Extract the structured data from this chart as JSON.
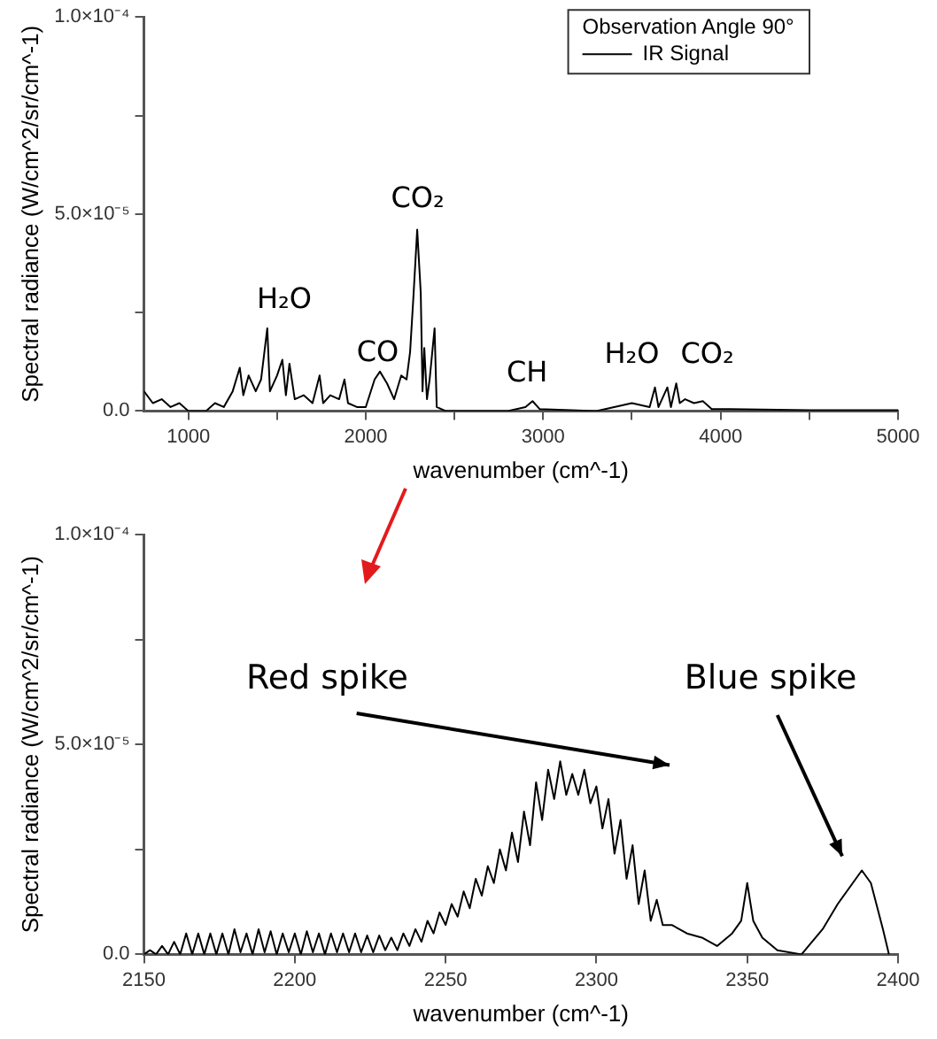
{
  "chart_data": [
    {
      "type": "line",
      "xlabel": "wavenumber (cm^-1)",
      "ylabel": "Spectral radiance (W/cm^2/sr/cm^-1)",
      "legend_title": "Observation Angle 90°",
      "legend": "top right",
      "xlim": [
        750,
        5000
      ],
      "xticks": [
        {
          "value": 1000,
          "label": "1000"
        },
        {
          "value": 1500,
          "label": null
        },
        {
          "value": 2000,
          "label": "2000"
        },
        {
          "value": 2500,
          "label": null
        },
        {
          "value": 3000,
          "label": "3000"
        },
        {
          "value": 3500,
          "label": null
        },
        {
          "value": 4000,
          "label": "4000"
        },
        {
          "value": 4500,
          "label": null
        },
        {
          "value": 5000,
          "label": "5000"
        }
      ],
      "ylim": [
        0,
        0.0001
      ],
      "yticks": [
        {
          "value": 0,
          "label": "0.0"
        },
        {
          "value": 2.5e-05,
          "label": null
        },
        {
          "value": 5e-05,
          "label": "5.0×10⁻⁵"
        },
        {
          "value": 7.5e-05,
          "label": null
        },
        {
          "value": 0.0001,
          "label": "1.0×10⁻⁴"
        }
      ],
      "x": [
        750,
        800,
        850,
        900,
        950,
        1000,
        1100,
        1150,
        1200,
        1250,
        1290,
        1310,
        1340,
        1380,
        1410,
        1445,
        1460,
        1500,
        1530,
        1550,
        1570,
        1600,
        1650,
        1700,
        1740,
        1760,
        1800,
        1850,
        1880,
        1900,
        1950,
        2000,
        2050,
        2080,
        2120,
        2160,
        2200,
        2230,
        2250,
        2270,
        2290,
        2310,
        2320,
        2330,
        2345,
        2360,
        2388,
        2400,
        2450,
        2800,
        2900,
        2940,
        2980,
        3300,
        3400,
        3500,
        3600,
        3630,
        3650,
        3700,
        3720,
        3750,
        3770,
        3800,
        3850,
        3900,
        3950,
        4050,
        4500,
        5000
      ],
      "series": [
        {
          "name": "IR Signal",
          "color": "#000000",
          "values": [
            5e-06,
            2e-06,
            3e-06,
            1e-06,
            2e-06,
            0,
            0,
            2e-06,
            1e-06,
            5e-06,
            1.1e-05,
            4e-06,
            9e-06,
            5e-06,
            8e-06,
            2.1e-05,
            5e-06,
            9e-06,
            1.3e-05,
            4e-06,
            1.2e-05,
            3e-06,
            4e-06,
            2e-06,
            9e-06,
            2e-06,
            4e-06,
            3e-06,
            8e-06,
            2e-06,
            1e-06,
            1e-06,
            8e-06,
            1e-05,
            7e-06,
            3e-06,
            9e-06,
            8e-06,
            1.5e-05,
            3e-05,
            4.6e-05,
            3e-05,
            5e-06,
            1.6e-05,
            3e-06,
            8e-06,
            2.1e-05,
            1e-06,
            0,
            0,
            1e-06,
            2.5e-06,
            5e-07,
            0,
            1e-06,
            2e-06,
            1e-06,
            6e-06,
            1e-06,
            6e-06,
            1e-06,
            7e-06,
            2e-06,
            3e-06,
            2e-06,
            2.5e-06,
            5e-07,
            5e-07,
            2e-07,
            2e-07
          ]
        }
      ],
      "annotations": [
        "H₂O",
        "CO",
        "CO₂",
        "CH",
        "H₂O",
        "CO₂"
      ]
    },
    {
      "type": "line",
      "xlabel": "wavenumber (cm^-1)",
      "ylabel": "Spectral radiance (W/cm^2/sr/cm^-1)",
      "color": "#000000",
      "xlim": [
        2150,
        2400
      ],
      "xticks": [
        2150,
        2200,
        2250,
        2300,
        2350,
        2400
      ],
      "ylim": [
        0,
        0.0001
      ],
      "yticks": [
        {
          "value": 0,
          "label": "0.0"
        },
        {
          "value": 2.5e-05,
          "label": null
        },
        {
          "value": 5e-05,
          "label": "5.0×10⁻⁵"
        },
        {
          "value": 7.5e-05,
          "label": null
        },
        {
          "value": 0.0001,
          "label": "1.0×10⁻⁴"
        }
      ],
      "x": [
        2150,
        2152,
        2154,
        2156,
        2158,
        2160,
        2162,
        2164,
        2166,
        2168,
        2170,
        2172,
        2174,
        2176,
        2178,
        2180,
        2182,
        2184,
        2186,
        2188,
        2190,
        2192,
        2194,
        2196,
        2198,
        2200,
        2202,
        2204,
        2206,
        2208,
        2210,
        2212,
        2214,
        2216,
        2218,
        2220,
        2222,
        2224,
        2226,
        2228,
        2230,
        2232,
        2234,
        2236,
        2238,
        2240,
        2242,
        2244,
        2246,
        2248,
        2250,
        2252,
        2254,
        2256,
        2258,
        2260,
        2262,
        2264,
        2266,
        2268,
        2270,
        2272,
        2274,
        2276,
        2278,
        2280,
        2282,
        2284,
        2286,
        2288,
        2290,
        2292,
        2294,
        2296,
        2298,
        2300,
        2302,
        2304,
        2306,
        2308,
        2310,
        2312,
        2314,
        2316,
        2318,
        2320,
        2322,
        2325,
        2330,
        2335,
        2340,
        2345,
        2348,
        2350,
        2352,
        2355,
        2360,
        2368,
        2375,
        2380,
        2385,
        2388,
        2391,
        2395,
        2397
      ],
      "values": [
        0,
        1e-06,
        0,
        2e-06,
        0,
        3e-06,
        0,
        5e-06,
        0,
        5e-06,
        0,
        5e-06,
        0,
        5e-06,
        0,
        6e-06,
        5e-07,
        5e-06,
        0,
        6e-06,
        5e-07,
        5.5e-06,
        0,
        5e-06,
        5e-07,
        5e-06,
        0,
        5.5e-06,
        5e-07,
        5e-06,
        0,
        5e-06,
        5e-07,
        5e-06,
        5e-07,
        5e-06,
        5e-07,
        4.5e-06,
        5e-07,
        4.5e-06,
        1e-06,
        4e-06,
        1e-06,
        5e-06,
        2e-06,
        6e-06,
        3e-06,
        8e-06,
        5e-06,
        1e-05,
        7e-06,
        1.2e-05,
        9e-06,
        1.5e-05,
        1.1e-05,
        1.8e-05,
        1.4e-05,
        2.1e-05,
        1.7e-05,
        2.5e-05,
        2e-05,
        2.9e-05,
        2.2e-05,
        3.4e-05,
        2.6e-05,
        4.1e-05,
        3.2e-05,
        4.4e-05,
        3.7e-05,
        4.6e-05,
        3.8e-05,
        4.3e-05,
        3.8e-05,
        4.4e-05,
        3.6e-05,
        4e-05,
        3e-05,
        3.7e-05,
        2.4e-05,
        3.2e-05,
        1.8e-05,
        2.6e-05,
        1.2e-05,
        2e-05,
        8e-06,
        1.3e-05,
        7e-06,
        7e-06,
        5e-06,
        4e-06,
        2e-06,
        5e-06,
        8e-06,
        1.7e-05,
        8e-06,
        4e-06,
        1e-06,
        0,
        6e-06,
        1.2e-05,
        1.7e-05,
        2e-05,
        1.7e-05,
        6e-06,
        0
      ],
      "annotations": [
        "Red spike",
        "Blue spike"
      ]
    }
  ]
}
